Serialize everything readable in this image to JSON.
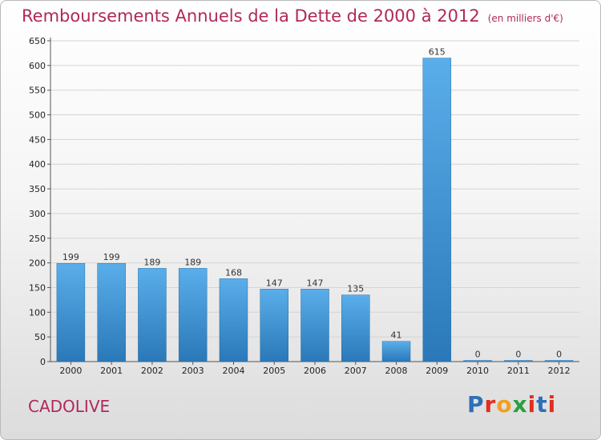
{
  "header": {
    "title": "Remboursements Annuels de la Dette de 2000 à 2012",
    "unit": "(en milliers d'€)"
  },
  "commune": "CADOLIVE",
  "logo": {
    "letters": [
      "P",
      "r",
      "o",
      "x",
      "i",
      "t",
      "i"
    ],
    "colors": [
      "#2f6fb5",
      "#e0301e",
      "#f0a020",
      "#2aa040",
      "#e0301e",
      "#2f6fb5",
      "#e0301e"
    ]
  },
  "chart_data": {
    "type": "bar",
    "title": "Remboursements Annuels de la Dette de 2000 à 2012",
    "xlabel": "",
    "ylabel": "",
    "categories": [
      "2000",
      "2001",
      "2002",
      "2003",
      "2004",
      "2005",
      "2006",
      "2007",
      "2008",
      "2009",
      "2010",
      "2011",
      "2012"
    ],
    "values": [
      199,
      199,
      189,
      189,
      168,
      147,
      147,
      135,
      41,
      615,
      0,
      0,
      0
    ],
    "ylim": [
      0,
      650
    ],
    "yticks": [
      0,
      50,
      100,
      150,
      200,
      250,
      300,
      350,
      400,
      450,
      500,
      550,
      600,
      650
    ],
    "grid": true,
    "bar_color": "#4a9fe0"
  }
}
